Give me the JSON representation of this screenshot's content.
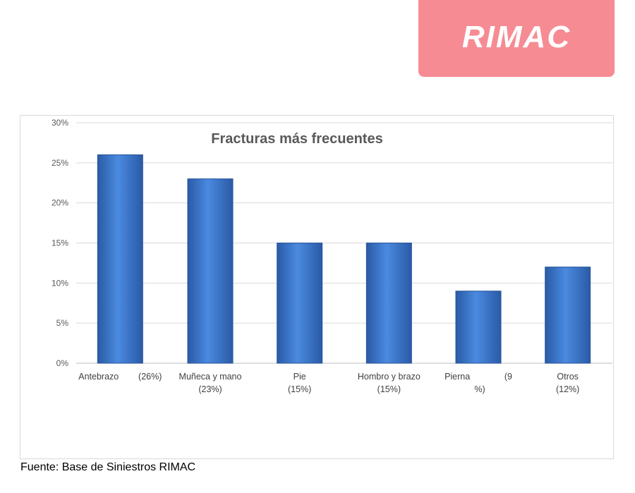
{
  "logo": {
    "text": "RIMAC",
    "color": "#f68b93"
  },
  "source": "Fuente: Base de Siniestros RIMAC",
  "chart_data": {
    "type": "bar",
    "title": "Fracturas más frecuentes",
    "categories": [
      "Antebrazo",
      "Muñeca y mano",
      "Pie",
      "Hombro y brazo",
      "Pierna",
      "Otros"
    ],
    "category_labels": [
      [
        "Antebrazo        (26%)"
      ],
      [
        "Muñeca y mano",
        "(23%)"
      ],
      [
        "Pie",
        "(15%)"
      ],
      [
        "Hombro y brazo",
        "(15%)"
      ],
      [
        "Pierna              (9",
        "%)"
      ],
      [
        "Otros",
        "(12%)"
      ]
    ],
    "values": [
      26,
      23,
      15,
      15,
      9,
      12
    ],
    "ylim": [
      0,
      30
    ],
    "yticks": [
      "0%",
      "5%",
      "10%",
      "15%",
      "20%",
      "25%",
      "30%"
    ],
    "grid": true,
    "bar_color": "#3d7bd1",
    "xlabel": "",
    "ylabel": ""
  }
}
